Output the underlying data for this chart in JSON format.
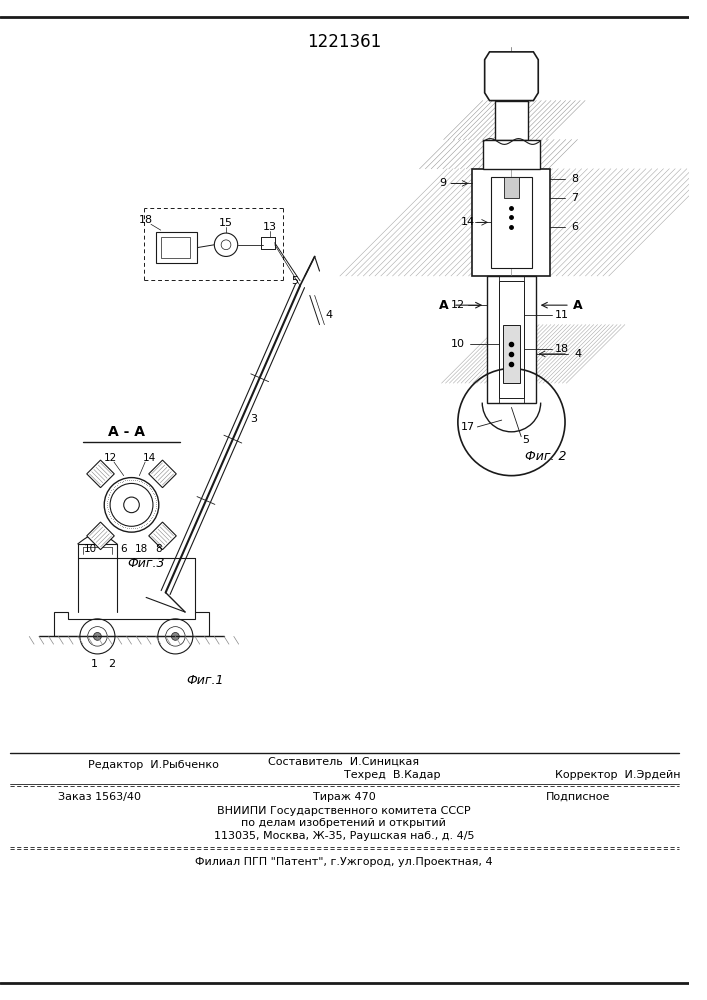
{
  "patent_number": "1221361",
  "bg_color": "#ffffff",
  "line_color": "#1a1a1a",
  "editor_line": "Редактор  И.Рыбченко",
  "composer_line": "Составитель  И.Синицкая",
  "techred_line": "Техред  В.Кадар",
  "corrector_line": "Корректор  И.Эрдейн",
  "order_line": "Заказ 1563/40",
  "tirage_line": "Тираж 470",
  "podpisnoe_line": "Подписное",
  "vniiipi_line1": "ВНИИПИ Государственного комитета СССР",
  "vniiipi_line2": "по делам изобретений и открытий",
  "vniiipi_line3": "113035, Москва, Ж-35, Раушская наб., д. 4/5",
  "filial_line": "Филиал ПГП \"Патент\", г.Ужгород, ул.Проектная, 4",
  "fig1_label": "Фиг.1",
  "fig2_label": "Фиг. 2",
  "fig3_label": "Фиг.3",
  "aa_label": "А - А"
}
